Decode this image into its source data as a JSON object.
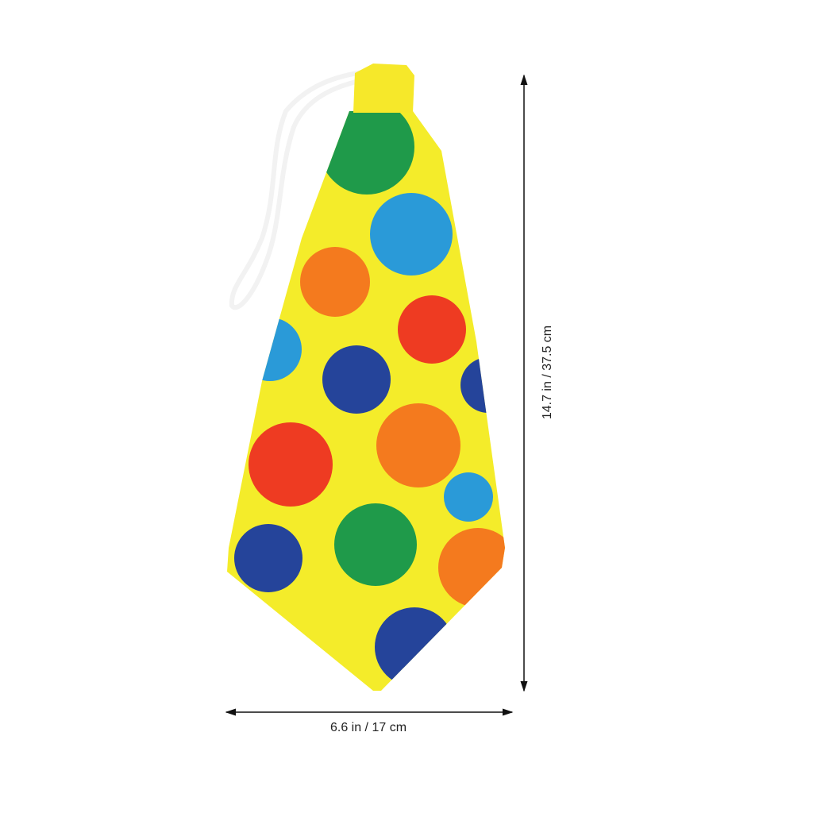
{
  "product": {
    "name": "polka dot clown tie",
    "base_color": "#f4ec2a",
    "dot_colors": {
      "green": "#1f9a4a",
      "blue": "#2a9ad8",
      "orange": "#f47a1e",
      "red": "#ee3b22",
      "navy": "#25449a"
    }
  },
  "dimensions": {
    "width_label": "6.6 in / 17 cm",
    "height_label": "14.7 in / 37.5 cm"
  }
}
